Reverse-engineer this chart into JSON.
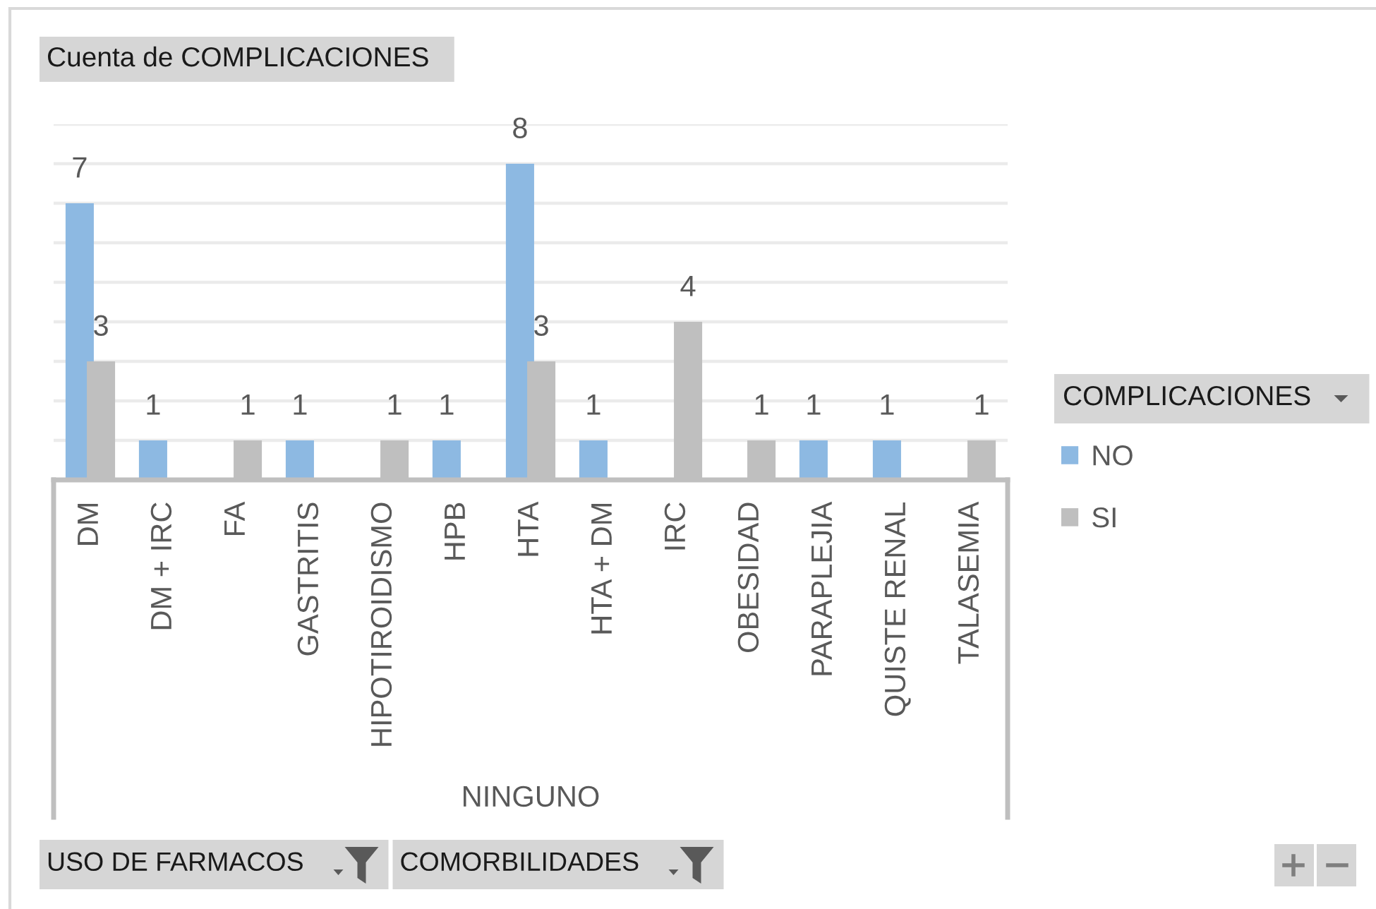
{
  "chart_data": {
    "type": "bar",
    "title": "Cuenta de COMPLICACIONES",
    "xlabel": "NINGUNO",
    "legend_title": "COMPLICACIONES",
    "categories": [
      "DM",
      "DM + IRC",
      "FA",
      "GASTRITIS",
      "HIPOTIROIDISMO",
      "HPB",
      "HTA",
      "HTA + DM",
      "IRC",
      "OBESIDAD",
      "PARAPLEJIA",
      "QUISTE RENAL",
      "TALASEMIA"
    ],
    "series": [
      {
        "name": "NO",
        "color": "#8db9e2",
        "values": [
          7,
          1,
          null,
          1,
          null,
          1,
          8,
          1,
          null,
          null,
          1,
          1,
          null
        ]
      },
      {
        "name": "SI",
        "color": "#bfbfbf",
        "values": [
          3,
          null,
          1,
          null,
          1,
          null,
          3,
          null,
          4,
          1,
          null,
          null,
          1
        ]
      }
    ],
    "ylim": [
      0,
      9
    ],
    "yticks": [
      {
        "value": 0,
        "label": null
      },
      {
        "value": 1,
        "label": null
      },
      {
        "value": 2,
        "label": null
      },
      {
        "value": 3,
        "label": null
      },
      {
        "value": 4,
        "label": null
      },
      {
        "value": 5,
        "label": null
      },
      {
        "value": 6,
        "label": null
      },
      {
        "value": 7,
        "label": null
      },
      {
        "value": 8,
        "label": null
      },
      {
        "value": 9,
        "label": null
      }
    ],
    "grid": "y",
    "tick_labels": "x",
    "data_labels": true,
    "legend": "right",
    "annotations": [
      "USO DE FARMACOS",
      "COMORBILIDADES"
    ]
  }
}
